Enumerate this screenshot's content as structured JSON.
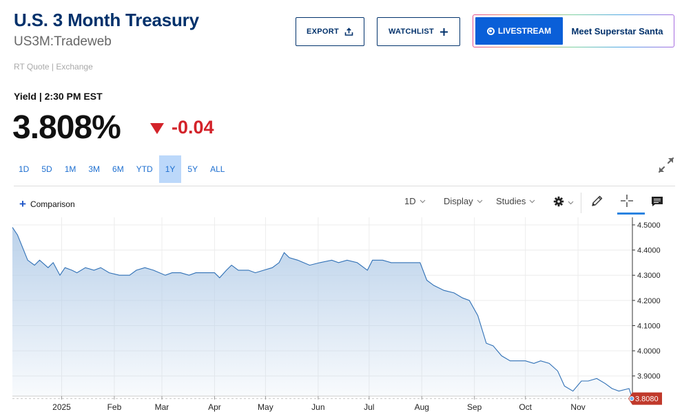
{
  "header": {
    "title": "U.S. 3 Month Treasury",
    "symbol": "US3M:Tradeweb",
    "quote_source": "RT Quote | Exchange",
    "export_label": "EXPORT",
    "watchlist_label": "WATCHLIST",
    "livestream_label": "LIVESTREAM",
    "livestream_title": "Meet Superstar Santa"
  },
  "quote": {
    "label": "Yield | 2:30 PM EST",
    "price": "3.808%",
    "change": "-0.04",
    "change_color": "#d3232a"
  },
  "ranges": [
    "1D",
    "5D",
    "1M",
    "3M",
    "6M",
    "YTD",
    "1Y",
    "5Y",
    "ALL"
  ],
  "active_range": "1Y",
  "toolbar": {
    "comparison_label": "Comparison",
    "interval_label": "1D",
    "display_label": "Display",
    "studies_label": "Studies"
  },
  "chart_data": {
    "type": "area",
    "symbol": "US3M:Tradeweb",
    "y_axis_ticks": [
      "4.5000",
      "4.4000",
      "4.3000",
      "4.2000",
      "4.1000",
      "4.0000",
      "3.9000"
    ],
    "x_axis_ticks": [
      "2025",
      "Feb",
      "Mar",
      "Apr",
      "May",
      "Jun",
      "Jul",
      "Aug",
      "Sep",
      "Oct",
      "Nov"
    ],
    "current_value_label": "3.8080",
    "line_color": "#2e6fb5",
    "fill_color": "#b7cfe9",
    "value_badge_color": "#c0392b",
    "ylim": [
      3.82,
      4.53
    ],
    "x_range": [
      "2024-12-03",
      "2025-12-03"
    ],
    "values": [
      [
        "2024-12-03",
        4.49
      ],
      [
        "2024-12-06",
        4.46
      ],
      [
        "2024-12-09",
        4.41
      ],
      [
        "2024-12-12",
        4.36
      ],
      [
        "2024-12-16",
        4.34
      ],
      [
        "2024-12-19",
        4.36
      ],
      [
        "2024-12-24",
        4.33
      ],
      [
        "2024-12-27",
        4.35
      ],
      [
        "2024-12-31",
        4.3
      ],
      [
        "2025-01-03",
        4.33
      ],
      [
        "2025-01-07",
        4.32
      ],
      [
        "2025-01-10",
        4.31
      ],
      [
        "2025-01-15",
        4.33
      ],
      [
        "2025-01-20",
        4.32
      ],
      [
        "2025-01-24",
        4.33
      ],
      [
        "2025-01-29",
        4.31
      ],
      [
        "2025-02-04",
        4.3
      ],
      [
        "2025-02-10",
        4.3
      ],
      [
        "2025-02-14",
        4.32
      ],
      [
        "2025-02-19",
        4.33
      ],
      [
        "2025-02-24",
        4.32
      ],
      [
        "2025-03-03",
        4.3
      ],
      [
        "2025-03-07",
        4.31
      ],
      [
        "2025-03-12",
        4.31
      ],
      [
        "2025-03-17",
        4.3
      ],
      [
        "2025-03-21",
        4.31
      ],
      [
        "2025-03-27",
        4.31
      ],
      [
        "2025-04-01",
        4.31
      ],
      [
        "2025-04-04",
        4.29
      ],
      [
        "2025-04-08",
        4.32
      ],
      [
        "2025-04-11",
        4.34
      ],
      [
        "2025-04-15",
        4.32
      ],
      [
        "2025-04-21",
        4.32
      ],
      [
        "2025-04-25",
        4.31
      ],
      [
        "2025-04-30",
        4.32
      ],
      [
        "2025-05-05",
        4.33
      ],
      [
        "2025-05-09",
        4.35
      ],
      [
        "2025-05-12",
        4.39
      ],
      [
        "2025-05-15",
        4.37
      ],
      [
        "2025-05-20",
        4.36
      ],
      [
        "2025-05-27",
        4.34
      ],
      [
        "2025-06-02",
        4.35
      ],
      [
        "2025-06-09",
        4.36
      ],
      [
        "2025-06-13",
        4.35
      ],
      [
        "2025-06-18",
        4.36
      ],
      [
        "2025-06-24",
        4.35
      ],
      [
        "2025-06-30",
        4.32
      ],
      [
        "2025-07-03",
        4.36
      ],
      [
        "2025-07-09",
        4.36
      ],
      [
        "2025-07-14",
        4.35
      ],
      [
        "2025-07-18",
        4.35
      ],
      [
        "2025-07-24",
        4.35
      ],
      [
        "2025-07-31",
        4.35
      ],
      [
        "2025-08-04",
        4.28
      ],
      [
        "2025-08-08",
        4.26
      ],
      [
        "2025-08-14",
        4.24
      ],
      [
        "2025-08-20",
        4.23
      ],
      [
        "2025-08-25",
        4.21
      ],
      [
        "2025-08-29",
        4.2
      ],
      [
        "2025-09-03",
        4.14
      ],
      [
        "2025-09-08",
        4.03
      ],
      [
        "2025-09-12",
        4.02
      ],
      [
        "2025-09-17",
        3.98
      ],
      [
        "2025-09-22",
        3.96
      ],
      [
        "2025-09-26",
        3.96
      ],
      [
        "2025-10-01",
        3.96
      ],
      [
        "2025-10-06",
        3.95
      ],
      [
        "2025-10-10",
        3.96
      ],
      [
        "2025-10-15",
        3.95
      ],
      [
        "2025-10-20",
        3.92
      ],
      [
        "2025-10-24",
        3.86
      ],
      [
        "2025-10-29",
        3.84
      ],
      [
        "2025-11-03",
        3.88
      ],
      [
        "2025-11-07",
        3.88
      ],
      [
        "2025-11-12",
        3.89
      ],
      [
        "2025-11-17",
        3.87
      ],
      [
        "2025-11-21",
        3.85
      ],
      [
        "2025-11-25",
        3.84
      ],
      [
        "2025-12-01",
        3.85
      ],
      [
        "2025-12-03",
        3.81
      ]
    ],
    "grid": true
  }
}
